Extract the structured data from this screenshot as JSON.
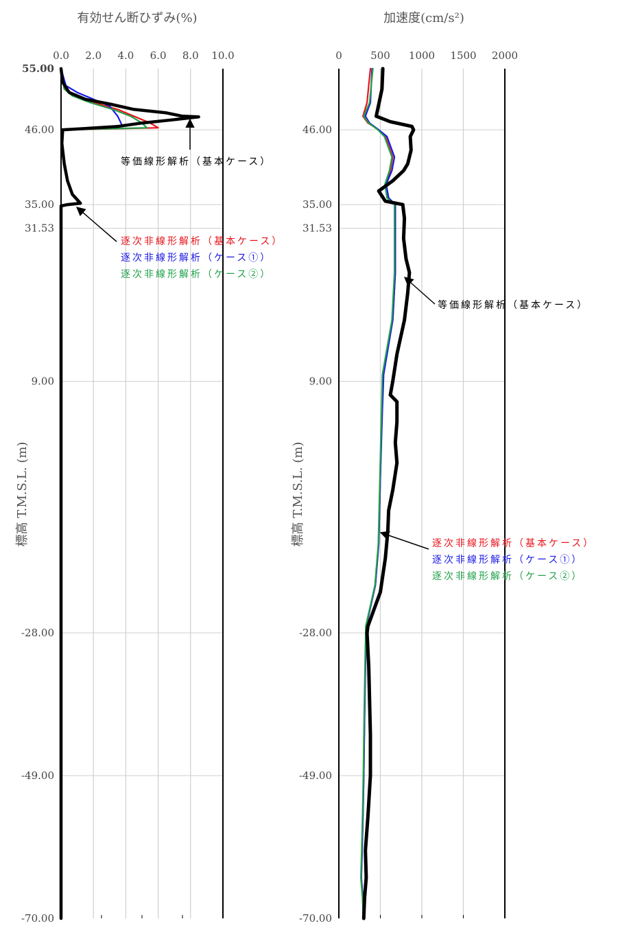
{
  "chart_data": [
    {
      "type": "line",
      "title": "有効せん断ひずみ(%)",
      "ylabel": "標高  T.M.S.L. (m)",
      "x_ticks": [
        "0.0",
        "2.0",
        "4.0",
        "6.0",
        "8.0",
        "10.0"
      ],
      "y_ticks": [
        "55.00",
        "46.00",
        "35.00",
        "31.53",
        "9.00",
        "-28.00",
        "-49.00",
        "-70.00"
      ],
      "xlim": [
        0,
        10
      ],
      "ylim": [
        -70,
        55
      ],
      "grid": true,
      "series": [
        {
          "name": "等価線形解析（基本ケース）",
          "color": "#000000",
          "points": [
            [
              0.0,
              55
            ],
            [
              0.1,
              53
            ],
            [
              0.5,
              51.5
            ],
            [
              1.5,
              50.5
            ],
            [
              3.0,
              49.8
            ],
            [
              4.5,
              49.0
            ],
            [
              6.5,
              48.5
            ],
            [
              7.5,
              48.0
            ],
            [
              8.5,
              47.9
            ],
            [
              7.0,
              47.5
            ],
            [
              5.0,
              47.0
            ],
            [
              3.5,
              46.5
            ],
            [
              1.5,
              46.2
            ],
            [
              0.1,
              46.0
            ],
            [
              0.05,
              44
            ],
            [
              0.2,
              41
            ],
            [
              0.4,
              38.5
            ],
            [
              0.7,
              36.5
            ],
            [
              1.2,
              35.2
            ],
            [
              0.4,
              35.0
            ],
            [
              0.0,
              34.8
            ],
            [
              0.0,
              -70
            ]
          ]
        },
        {
          "name": "逐次非線形解析（基本ケース）",
          "color": "#e8141b",
          "points": [
            [
              0.0,
              55
            ],
            [
              0.2,
              52
            ],
            [
              0.8,
              51
            ],
            [
              2.0,
              50
            ],
            [
              3.5,
              49
            ],
            [
              4.5,
              48
            ],
            [
              5.5,
              47
            ],
            [
              6.0,
              46.3
            ],
            [
              0.1,
              46.0
            ],
            [
              0.05,
              44
            ],
            [
              0.2,
              41
            ],
            [
              0.4,
              38.5
            ],
            [
              0.7,
              36.5
            ],
            [
              1.2,
              35.2
            ],
            [
              0.3,
              35.0
            ],
            [
              0.0,
              34.8
            ],
            [
              0.0,
              -70
            ]
          ]
        },
        {
          "name": "逐次非線形解析（ケース①）",
          "color": "#1919e6",
          "points": [
            [
              0.0,
              55
            ],
            [
              0.3,
              52.5
            ],
            [
              1.0,
              51.5
            ],
            [
              2.0,
              50.5
            ],
            [
              3.0,
              49.5
            ],
            [
              3.5,
              48
            ],
            [
              3.8,
              46.5
            ],
            [
              0.1,
              46.0
            ],
            [
              0.05,
              44
            ],
            [
              0.2,
              41
            ],
            [
              0.4,
              38.5
            ],
            [
              0.7,
              36.5
            ],
            [
              1.1,
              35.2
            ],
            [
              0.3,
              35.0
            ],
            [
              0.0,
              34.8
            ],
            [
              0.0,
              -70
            ]
          ]
        },
        {
          "name": "逐次非線形解析（ケース②）",
          "color": "#22a04a",
          "points": [
            [
              0.0,
              55
            ],
            [
              0.2,
              52
            ],
            [
              0.7,
              51
            ],
            [
              1.8,
              50
            ],
            [
              3.2,
              49
            ],
            [
              4.3,
              48
            ],
            [
              5.0,
              47
            ],
            [
              5.3,
              46.3
            ],
            [
              0.1,
              46.0
            ],
            [
              0.05,
              44
            ],
            [
              0.2,
              41
            ],
            [
              0.4,
              38.5
            ],
            [
              0.7,
              36.5
            ],
            [
              1.1,
              35.2
            ],
            [
              0.3,
              35.0
            ],
            [
              0.0,
              34.8
            ],
            [
              0.0,
              -70
            ]
          ]
        }
      ],
      "annotations": {
        "equiv": "等価線形解析（基本ケース）",
        "seq": [
          "逐次非線形解析（基本ケース）",
          "逐次非線形解析（ケース①）",
          "逐次非線形解析（ケース②）"
        ]
      }
    },
    {
      "type": "line",
      "title": "加速度(cm/s²)",
      "ylabel": "標高  T.M.S.L. (m)",
      "x_ticks": [
        "0",
        "500",
        "1000",
        "1500",
        "2000"
      ],
      "y_ticks": [
        "46.00",
        "35.00",
        "31.53",
        "9.00",
        "-28.00",
        "-49.00",
        "-70.00"
      ],
      "xlim": [
        0,
        2000
      ],
      "ylim": [
        -70,
        55
      ],
      "grid": true,
      "series": [
        {
          "name": "等価線形解析（基本ケース）",
          "color": "#000000",
          "points": [
            [
              530,
              55
            ],
            [
              520,
              52
            ],
            [
              450,
              48
            ],
            [
              620,
              47.2
            ],
            [
              880,
              46.5
            ],
            [
              900,
              46
            ],
            [
              860,
              45
            ],
            [
              870,
              43
            ],
            [
              830,
              41
            ],
            [
              780,
              40
            ],
            [
              650,
              38.5
            ],
            [
              480,
              37
            ],
            [
              560,
              35.5
            ],
            [
              770,
              35
            ],
            [
              790,
              33
            ],
            [
              780,
              30
            ],
            [
              810,
              27
            ],
            [
              850,
              25
            ],
            [
              830,
              22
            ],
            [
              790,
              18
            ],
            [
              700,
              13
            ],
            [
              650,
              9
            ],
            [
              620,
              7
            ],
            [
              700,
              6
            ],
            [
              700,
              3
            ],
            [
              680,
              0
            ],
            [
              700,
              -3
            ],
            [
              650,
              -7
            ],
            [
              600,
              -10
            ],
            [
              590,
              -13
            ],
            [
              560,
              -17
            ],
            [
              500,
              -22
            ],
            [
              350,
              -27
            ],
            [
              340,
              -28
            ],
            [
              360,
              -33
            ],
            [
              370,
              -38
            ],
            [
              380,
              -43
            ],
            [
              380,
              -49
            ],
            [
              350,
              -55
            ],
            [
              320,
              -60
            ],
            [
              330,
              -64
            ],
            [
              310,
              -67
            ],
            [
              300,
              -70
            ]
          ]
        },
        {
          "name": "逐次非線形解析（基本ケース）",
          "color": "#e8141b",
          "points": [
            [
              380,
              55
            ],
            [
              340,
              50
            ],
            [
              290,
              48
            ],
            [
              350,
              47
            ],
            [
              480,
              46
            ],
            [
              560,
              45
            ],
            [
              650,
              42
            ],
            [
              620,
              40
            ],
            [
              560,
              38
            ],
            [
              590,
              36
            ],
            [
              680,
              35
            ],
            [
              680,
              32
            ],
            [
              680,
              25
            ],
            [
              650,
              18
            ],
            [
              530,
              10
            ],
            [
              520,
              5
            ],
            [
              500,
              -5
            ],
            [
              480,
              -15
            ],
            [
              440,
              -21
            ],
            [
              330,
              -27
            ],
            [
              320,
              -33
            ],
            [
              310,
              -40
            ],
            [
              300,
              -49
            ],
            [
              290,
              -55
            ],
            [
              280,
              -60
            ],
            [
              270,
              -64
            ],
            [
              290,
              -67
            ],
            [
              300,
              -70
            ]
          ]
        },
        {
          "name": "逐次非線形解析（ケース①）",
          "color": "#1919e6",
          "points": [
            [
              400,
              55
            ],
            [
              380,
              50
            ],
            [
              320,
              48
            ],
            [
              370,
              47
            ],
            [
              480,
              46
            ],
            [
              580,
              45
            ],
            [
              670,
              42
            ],
            [
              640,
              40
            ],
            [
              570,
              38
            ],
            [
              600,
              36
            ],
            [
              680,
              35
            ],
            [
              680,
              32
            ],
            [
              680,
              25
            ],
            [
              650,
              18
            ],
            [
              540,
              10
            ],
            [
              525,
              5
            ],
            [
              500,
              -5
            ],
            [
              480,
              -15
            ],
            [
              440,
              -21
            ],
            [
              330,
              -27
            ],
            [
              320,
              -33
            ],
            [
              310,
              -40
            ],
            [
              300,
              -49
            ],
            [
              290,
              -55
            ],
            [
              280,
              -60
            ],
            [
              270,
              -64
            ],
            [
              290,
              -67
            ],
            [
              300,
              -70
            ]
          ]
        },
        {
          "name": "逐次非線形解析（ケース②）",
          "color": "#22a04a",
          "points": [
            [
              410,
              55
            ],
            [
              370,
              50
            ],
            [
              300,
              48
            ],
            [
              360,
              47
            ],
            [
              470,
              46
            ],
            [
              550,
              45
            ],
            [
              640,
              42
            ],
            [
              610,
              40
            ],
            [
              555,
              38
            ],
            [
              580,
              36
            ],
            [
              670,
              35
            ],
            [
              670,
              32
            ],
            [
              670,
              25
            ],
            [
              640,
              18
            ],
            [
              525,
              10
            ],
            [
              515,
              5
            ],
            [
              495,
              -5
            ],
            [
              475,
              -15
            ],
            [
              435,
              -21
            ],
            [
              325,
              -27
            ],
            [
              315,
              -33
            ],
            [
              305,
              -40
            ],
            [
              295,
              -49
            ],
            [
              285,
              -55
            ],
            [
              275,
              -60
            ],
            [
              265,
              -64
            ],
            [
              285,
              -67
            ],
            [
              295,
              -70
            ]
          ]
        }
      ],
      "annotations": {
        "equiv": "等価線形解析（基本ケース）",
        "seq": [
          "逐次非線形解析（基本ケース）",
          "逐次非線形解析（ケース①）",
          "逐次非線形解析（ケース②）"
        ]
      }
    }
  ]
}
